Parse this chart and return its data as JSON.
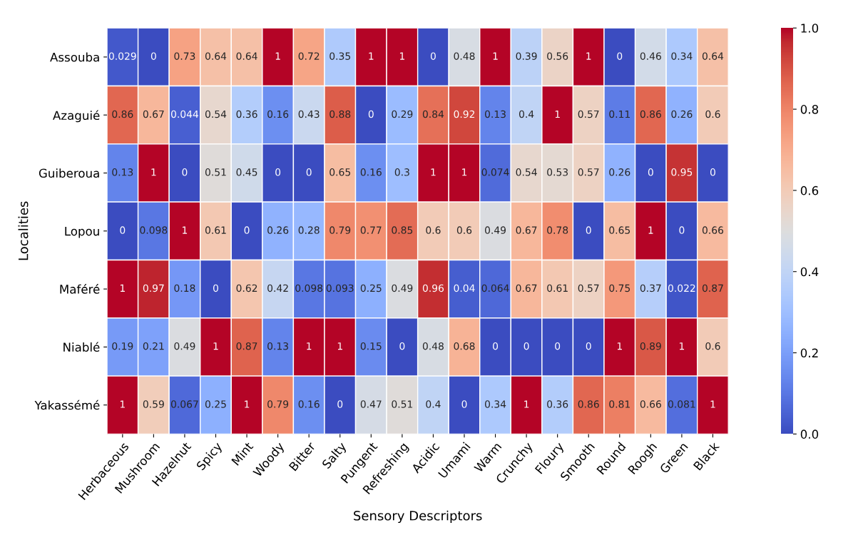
{
  "chart_data": {
    "type": "heatmap",
    "xlabel": "Sensory Descriptors",
    "ylabel": "Localities",
    "categories": [
      "Herbaceous",
      "Mushroom",
      "Hazelnut",
      "Spicy",
      "Mint",
      "Woody",
      "Bitter",
      "Salty",
      "Pungent",
      "Refreshing",
      "Acidic",
      "Umami",
      "Warm",
      "Crunchy",
      "Floury",
      "Smooth",
      "Round",
      "Roogh",
      "Green",
      "Black"
    ],
    "y_categories": [
      "Assouba",
      "Azaguié",
      "Guiberoua",
      "Lopou",
      "Maféré",
      "Niablé",
      "Yakassémé"
    ],
    "cells": [
      [
        0.029,
        0,
        0.73,
        0.64,
        0.64,
        1,
        0.72,
        0.35,
        1,
        1,
        0,
        0.48,
        1,
        0.39,
        0.56,
        1,
        0,
        0.46,
        0.34,
        0.64
      ],
      [
        0.86,
        0.67,
        0.044,
        0.54,
        0.36,
        0.16,
        0.43,
        0.88,
        0,
        0.29,
        0.84,
        0.92,
        0.13,
        0.4,
        1,
        0.57,
        0.11,
        0.86,
        0.26,
        0.6
      ],
      [
        0.13,
        1,
        0,
        0.51,
        0.45,
        0,
        0,
        0.65,
        0.16,
        0.3,
        1,
        1,
        0.074,
        0.54,
        0.53,
        0.57,
        0.26,
        0,
        0.95,
        0
      ],
      [
        0,
        0.098,
        1,
        0.61,
        0,
        0.26,
        0.28,
        0.79,
        0.77,
        0.85,
        0.6,
        0.6,
        0.49,
        0.67,
        0.78,
        0,
        0.65,
        1,
        0,
        0.66
      ],
      [
        1,
        0.97,
        0.18,
        0,
        0.62,
        0.42,
        0.098,
        0.093,
        0.25,
        0.49,
        0.96,
        0.04,
        0.064,
        0.67,
        0.61,
        0.57,
        0.75,
        0.37,
        0.022,
        0.87
      ],
      [
        0.19,
        0.21,
        0.49,
        1,
        0.87,
        0.13,
        1,
        1,
        0.15,
        0,
        0.48,
        0.68,
        0,
        0,
        0,
        0,
        1,
        0.89,
        1,
        0.6
      ],
      [
        1,
        0.59,
        0.067,
        0.25,
        1,
        0.79,
        0.16,
        0,
        0.47,
        0.51,
        0.4,
        0,
        0.34,
        1,
        0.36,
        0.86,
        0.81,
        0.66,
        0.081,
        1
      ]
    ],
    "clim": [
      0,
      1
    ],
    "cticks": [
      {
        "value": 0,
        "label": "0.0"
      },
      {
        "value": 0.2,
        "label": "0.2"
      },
      {
        "value": 0.4,
        "label": "0.4"
      },
      {
        "value": 0.6,
        "label": "0.6"
      },
      {
        "value": 0.8,
        "label": "0.8"
      },
      {
        "value": 1,
        "label": "1.0"
      }
    ],
    "data_labels": true
  }
}
